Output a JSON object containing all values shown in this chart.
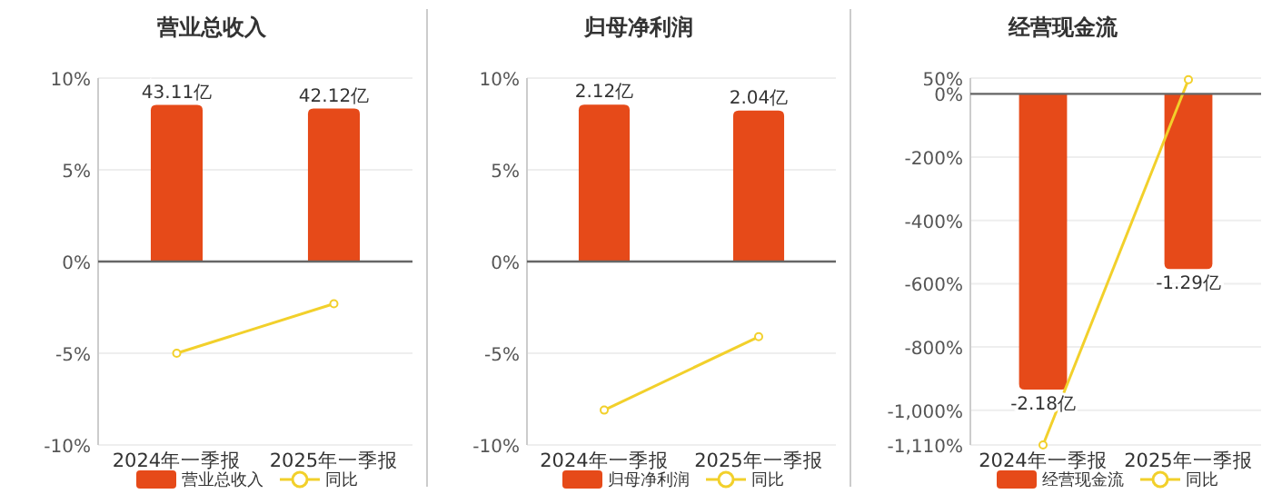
{
  "chart_data": [
    {
      "type": "bar",
      "title": "营业总收入",
      "categories": [
        "2024年一季报",
        "2025年一季报"
      ],
      "series": [
        {
          "name": "营业总收入",
          "color": "#e64a19",
          "axis": "y2",
          "values": [
            43.11,
            42.12
          ],
          "value_labels": [
            "43.11亿",
            "42.12亿"
          ]
        },
        {
          "name": "同比",
          "type": "line",
          "color": "#f2d02b",
          "marker": "circle",
          "values": [
            -5,
            -2.3
          ]
        }
      ],
      "ylim": [
        -10,
        10
      ],
      "yticks": [
        {
          "value": -10,
          "label": "-10%"
        },
        {
          "value": -5,
          "label": "-5%"
        },
        {
          "value": 0,
          "label": "0%"
        },
        {
          "value": 5,
          "label": "5%"
        },
        {
          "value": 10,
          "label": "10%"
        }
      ],
      "y2lim": [
        -50.5,
        50.5
      ],
      "grid": "y",
      "legend": "bottom"
    },
    {
      "type": "bar",
      "title": "归母净利润",
      "categories": [
        "2024年一季报",
        "2025年一季报"
      ],
      "series": [
        {
          "name": "归母净利润",
          "color": "#e64a19",
          "axis": "y2",
          "values": [
            2.12,
            2.04
          ],
          "value_labels": [
            "2.12亿",
            "2.04亿"
          ]
        },
        {
          "name": "同比",
          "type": "line",
          "color": "#f2d02b",
          "marker": "circle",
          "values": [
            -8.1,
            -4.1
          ]
        }
      ],
      "ylim": [
        -10,
        10
      ],
      "yticks": [
        {
          "value": -10,
          "label": "-10%"
        },
        {
          "value": -5,
          "label": "-5%"
        },
        {
          "value": 0,
          "label": "0%"
        },
        {
          "value": 5,
          "label": "5%"
        },
        {
          "value": 10,
          "label": "10%"
        }
      ],
      "y2lim": [
        -2.48,
        2.48
      ],
      "grid": "y",
      "legend": "bottom"
    },
    {
      "type": "bar",
      "title": "经营现金流",
      "categories": [
        "2024年一季报",
        "2025年一季报"
      ],
      "series": [
        {
          "name": "经营现金流",
          "color": "#e64a19",
          "axis": "y2",
          "values": [
            -2.18,
            -1.29
          ],
          "value_labels": [
            "-2.18亿",
            "-1.29亿"
          ]
        },
        {
          "name": "同比",
          "type": "line",
          "color": "#f2d02b",
          "marker": "circle",
          "values": [
            -1110,
            45
          ]
        }
      ],
      "ylim": [
        -1110,
        50
      ],
      "yticks": [
        {
          "value": -1110,
          "label": "-1,110%"
        },
        {
          "value": -1000,
          "label": "-1,000%"
        },
        {
          "value": -800,
          "label": "-800%"
        },
        {
          "value": -600,
          "label": "-600%"
        },
        {
          "value": -400,
          "label": "-400%"
        },
        {
          "value": -200,
          "label": "-200%"
        },
        {
          "value": 0,
          "label": "0%"
        },
        {
          "value": 50,
          "label": "50%"
        }
      ],
      "y2lim": [
        -2.588,
        0.117
      ],
      "grid": "y",
      "legend": "bottom"
    }
  ]
}
